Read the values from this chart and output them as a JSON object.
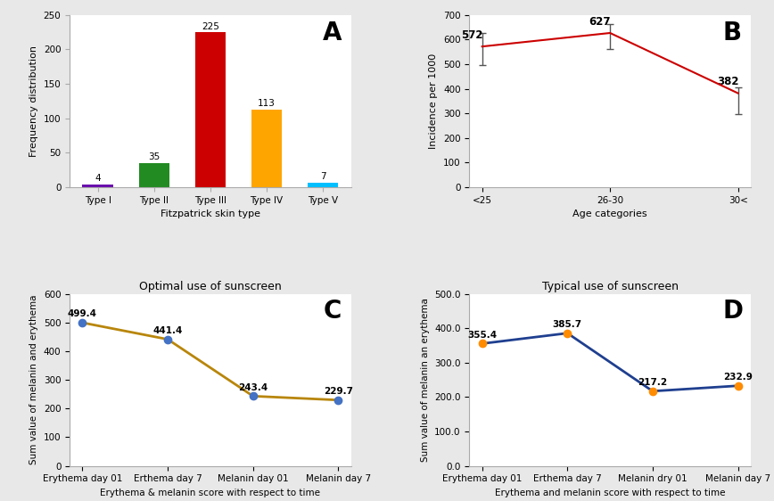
{
  "panel_A": {
    "categories": [
      "Type I",
      "Type II",
      "Type III",
      "Type IV",
      "Type V"
    ],
    "values": [
      4,
      35,
      225,
      113,
      7
    ],
    "colors": [
      "#6A0DAD",
      "#228B22",
      "#CC0000",
      "#FFA500",
      "#00BFFF"
    ],
    "xlabel": "Fitzpatrick skin type",
    "ylabel": "Frequency distribution",
    "ylim": [
      0,
      250
    ],
    "yticks": [
      0,
      50,
      100,
      150,
      200,
      250
    ],
    "label": "A"
  },
  "panel_B": {
    "x_labels": [
      "<25",
      "26-30",
      "30<"
    ],
    "values": [
      572,
      627,
      382
    ],
    "yerr_lower": [
      75,
      67,
      85
    ],
    "yerr_upper": [
      55,
      35,
      25
    ],
    "xlabel": "Age categories",
    "ylabel": "Incidence per 1000",
    "ylim": [
      0,
      700
    ],
    "yticks": [
      0,
      100,
      200,
      300,
      400,
      500,
      600,
      700
    ],
    "color": "#CC0000",
    "label": "B"
  },
  "panel_C": {
    "x_labels": [
      "Erythema day 01",
      "Erthema day 7",
      "Melanin day 01",
      "Melanin day 7"
    ],
    "values": [
      499.4,
      441.4,
      243.4,
      229.7
    ],
    "xlabel": "Erythema & melanin score with respect to time",
    "ylabel": "Sum value of melanin and erythema",
    "title": "Optimal use of sunscreen",
    "ylim": [
      0,
      600
    ],
    "yticks": [
      0,
      100,
      200,
      300,
      400,
      500,
      600
    ],
    "color": "#B8860B",
    "marker_color": "#4472C4",
    "label": "C"
  },
  "panel_D": {
    "x_labels": [
      "Erythema day 01",
      "Erthema day 7",
      "Melanin dry 01",
      "Melanin day 7"
    ],
    "values": [
      355.4,
      385.7,
      217.2,
      232.9
    ],
    "xlabel": "Erythema and melanin score with respect to time",
    "ylabel": "Sum value of melanin an erythema",
    "title": "Typical use of sunscreen",
    "ylim": [
      0,
      500
    ],
    "yticks": [
      0.0,
      100.0,
      200.0,
      300.0,
      400.0,
      500.0
    ],
    "color": "#1F3F8F",
    "marker_color": "#FF8C00",
    "label": "D"
  },
  "figure": {
    "bg_color": "#E8E8E8",
    "panel_bg": "#FFFFFF"
  }
}
